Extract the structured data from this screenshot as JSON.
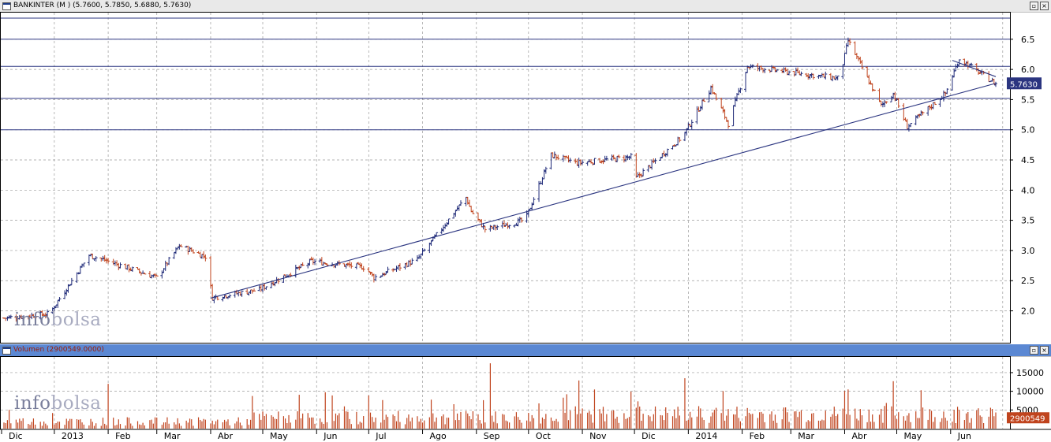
{
  "price_panel": {
    "title": "BANKINTER (M ) (5.7600, 5.7850, 5.6880, 5.7630)",
    "last_value_label": "5.7630",
    "restore_icon": "restore-icon",
    "close_icon": "close-icon"
  },
  "volume_panel": {
    "title": "Volumen (2900549.0000)",
    "last_value_label": "2900549",
    "restore_icon": "restore-icon",
    "close_icon": "close-icon"
  },
  "watermark": {
    "part1": "info",
    "part2": "bolsa"
  },
  "colors": {
    "up": "#1f2a78",
    "down": "#c0441e",
    "axis": "#000000",
    "grid": "#9a9a9a",
    "volume": "#c0441e",
    "line": "#2b3580",
    "title_bar_volume": "#5b88d3"
  },
  "chart_data": [
    {
      "type": "ohlc",
      "title": "BANKINTER",
      "ylim": [
        1.55,
        6.85
      ],
      "y_ticks": [
        2.0,
        2.5,
        3.0,
        3.5,
        4.0,
        4.5,
        5.0,
        5.5,
        6.0,
        6.5
      ],
      "y_tick_labels": [
        "2.0",
        "2.5",
        "3.0",
        "3.5",
        "4.0",
        "4.5",
        "5.0",
        "5.5",
        "6.0",
        "6.5"
      ],
      "horizontal_levels": [
        6.85,
        6.5,
        6.05,
        5.52,
        5.0
      ],
      "trendlines": [
        {
          "from": [
            "2013-04-01",
            2.21
          ],
          "to": [
            "2014-06-27",
            5.77
          ]
        },
        {
          "from": [
            "2014-06-02",
            6.15
          ],
          "to": [
            "2014-06-27",
            5.88
          ]
        }
      ],
      "monthly_closes": [
        {
          "month": "Dic 2012",
          "value": 1.95
        },
        {
          "month": "Ene 2013",
          "value": 2.85
        },
        {
          "month": "Feb 2013",
          "value": 2.55
        },
        {
          "month": "Mar 2013",
          "value": 2.9
        },
        {
          "month": "Abr 2013",
          "value": 2.35
        },
        {
          "month": "May 2013",
          "value": 2.82
        },
        {
          "month": "Jun 2013",
          "value": 2.72
        },
        {
          "month": "Jul 2013",
          "value": 2.85
        },
        {
          "month": "Ago 2013",
          "value": 3.65
        },
        {
          "month": "Sep 2013",
          "value": 3.5
        },
        {
          "month": "Oct 2013",
          "value": 4.45
        },
        {
          "month": "Nov 2013",
          "value": 4.55
        },
        {
          "month": "Dic 2013",
          "value": 4.9
        },
        {
          "month": "Ene 2014",
          "value": 5.55
        },
        {
          "month": "Feb 2014",
          "value": 5.95
        },
        {
          "month": "Mar 2014",
          "value": 5.85
        },
        {
          "month": "Abr 2014",
          "value": 5.6
        },
        {
          "month": "May 2014",
          "value": 5.6
        },
        {
          "month": "Jun 2014",
          "value": 5.76
        }
      ],
      "last": {
        "open": 5.76,
        "high": 5.785,
        "low": 5.688,
        "close": 5.763
      }
    },
    {
      "type": "bar",
      "title": "Volumen",
      "ylim": [
        0,
        19000
      ],
      "y_ticks": [
        5000,
        10000,
        15000
      ],
      "y_tick_labels": [
        "5000",
        "10000",
        "15000"
      ],
      "last_value": 2900549,
      "peaks": [
        {
          "date": "2013-02-01",
          "value": 12000
        },
        {
          "date": "2013-09-09",
          "value": 17500
        },
        {
          "date": "2013-12-30",
          "value": 13500
        },
        {
          "date": "2014-04-03",
          "value": 10500
        }
      ]
    }
  ],
  "x_axis": {
    "labels": [
      "Dic",
      "2013",
      "Feb",
      "Mar",
      "Abr",
      "May",
      "Jun",
      "Jul",
      "Ago",
      "Sep",
      "Oct",
      "Nov",
      "Dic",
      "2014",
      "Feb",
      "Mar",
      "Abr",
      "May",
      "Jun"
    ],
    "start_date": "2012-12-03",
    "end_date": "2014-06-27"
  }
}
